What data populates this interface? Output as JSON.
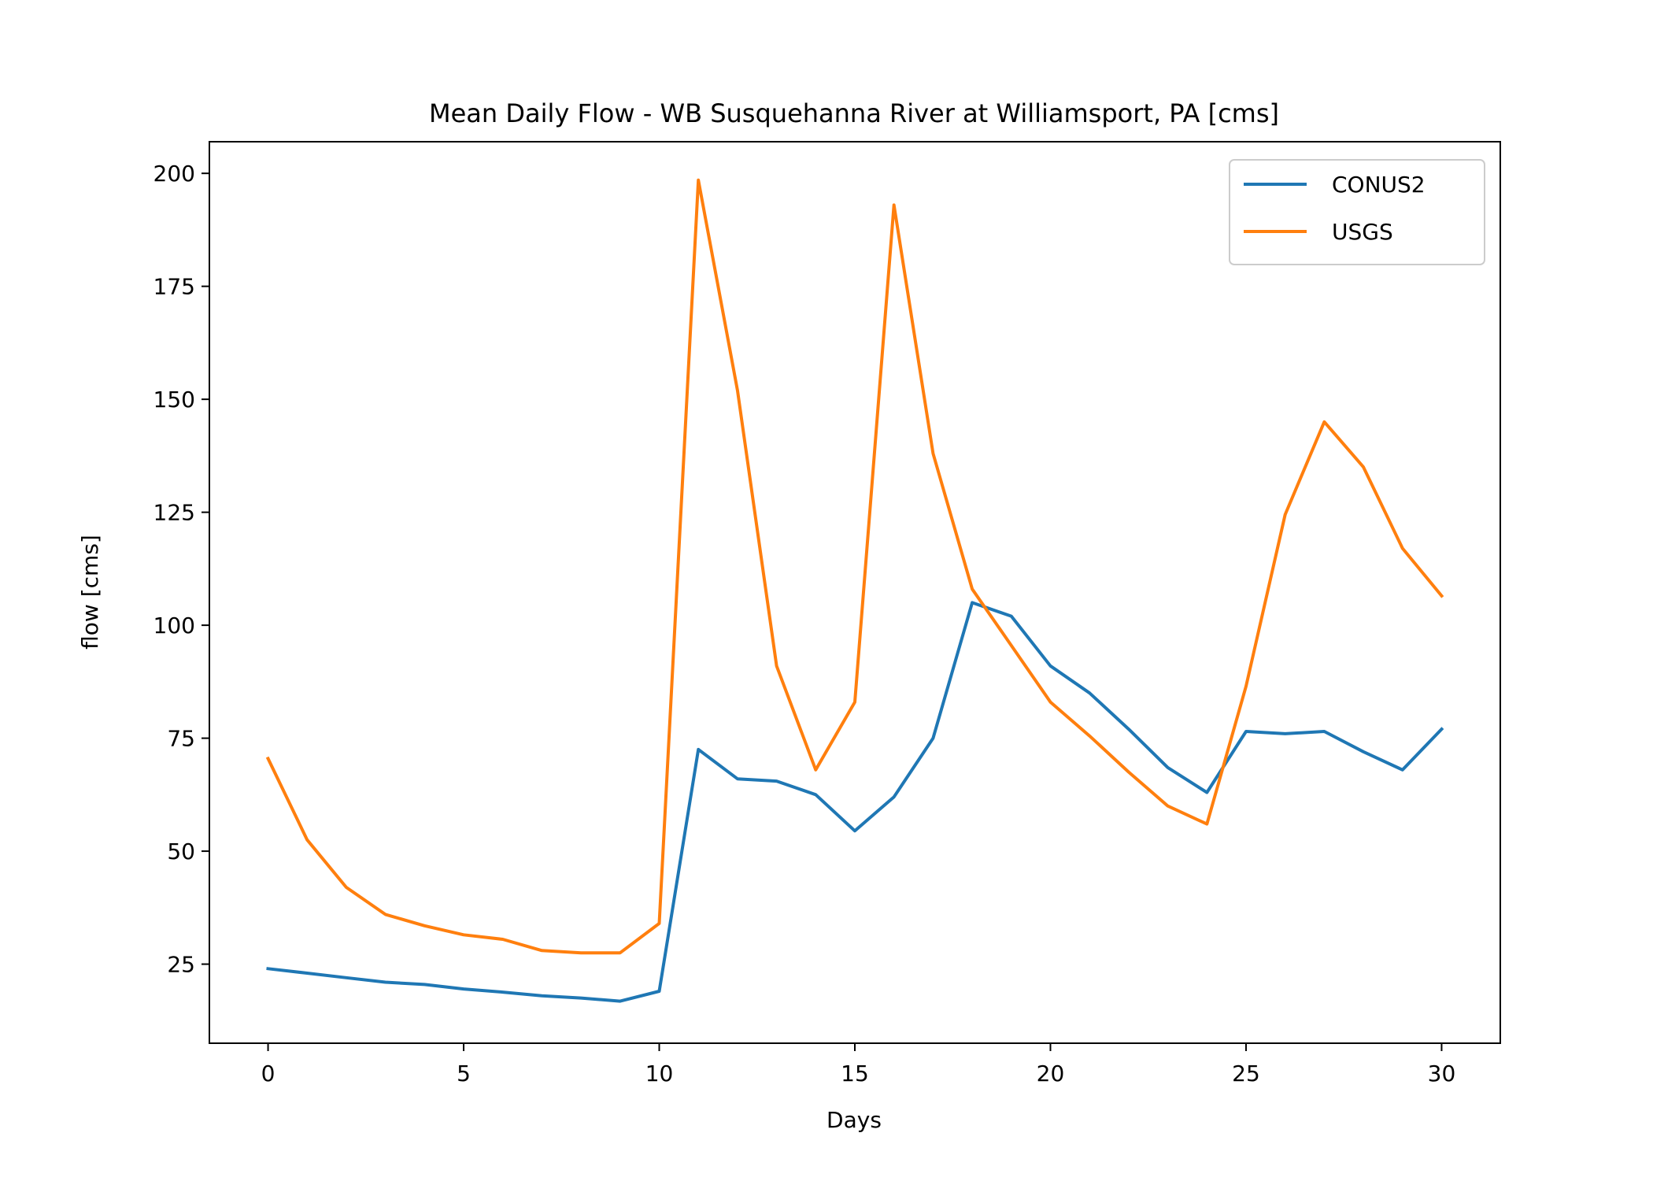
{
  "chart_data": {
    "type": "line",
    "title": "Mean Daily Flow - WB Susquehanna River at Williamsport, PA [cms]",
    "xlabel": "Days",
    "ylabel": "flow [cms]",
    "xlim": [
      -1.5,
      31.5
    ],
    "ylim": [
      7.5,
      207
    ],
    "xticks": [
      0,
      5,
      10,
      15,
      20,
      25,
      30
    ],
    "yticks": [
      25,
      50,
      75,
      100,
      125,
      150,
      175,
      200
    ],
    "grid": false,
    "legend_position": "top-right",
    "x": [
      0,
      1,
      2,
      3,
      4,
      5,
      6,
      7,
      8,
      9,
      10,
      11,
      12,
      13,
      14,
      15,
      16,
      17,
      18,
      19,
      20,
      21,
      22,
      23,
      24,
      25,
      26,
      27,
      28,
      29,
      30
    ],
    "series": [
      {
        "name": "CONUS2",
        "color": "#1f77b4",
        "values": [
          24,
          23,
          22,
          21,
          20.5,
          19.5,
          18.8,
          18,
          17.5,
          16.8,
          19,
          72.5,
          66,
          65.5,
          62.5,
          54.5,
          62,
          75,
          105,
          102,
          91,
          85,
          77,
          68.5,
          63,
          76.5,
          76,
          76.5,
          72,
          68,
          77
        ]
      },
      {
        "name": "USGS",
        "color": "#ff7f0e",
        "values": [
          70.5,
          52.5,
          42,
          36,
          33.5,
          31.5,
          30.5,
          28,
          27.5,
          27.5,
          34,
          198.5,
          152,
          91,
          68,
          83,
          193,
          138,
          108,
          95.5,
          83,
          75.5,
          67.5,
          60,
          56,
          86.5,
          124.5,
          145,
          135,
          117,
          106.5
        ]
      }
    ]
  }
}
